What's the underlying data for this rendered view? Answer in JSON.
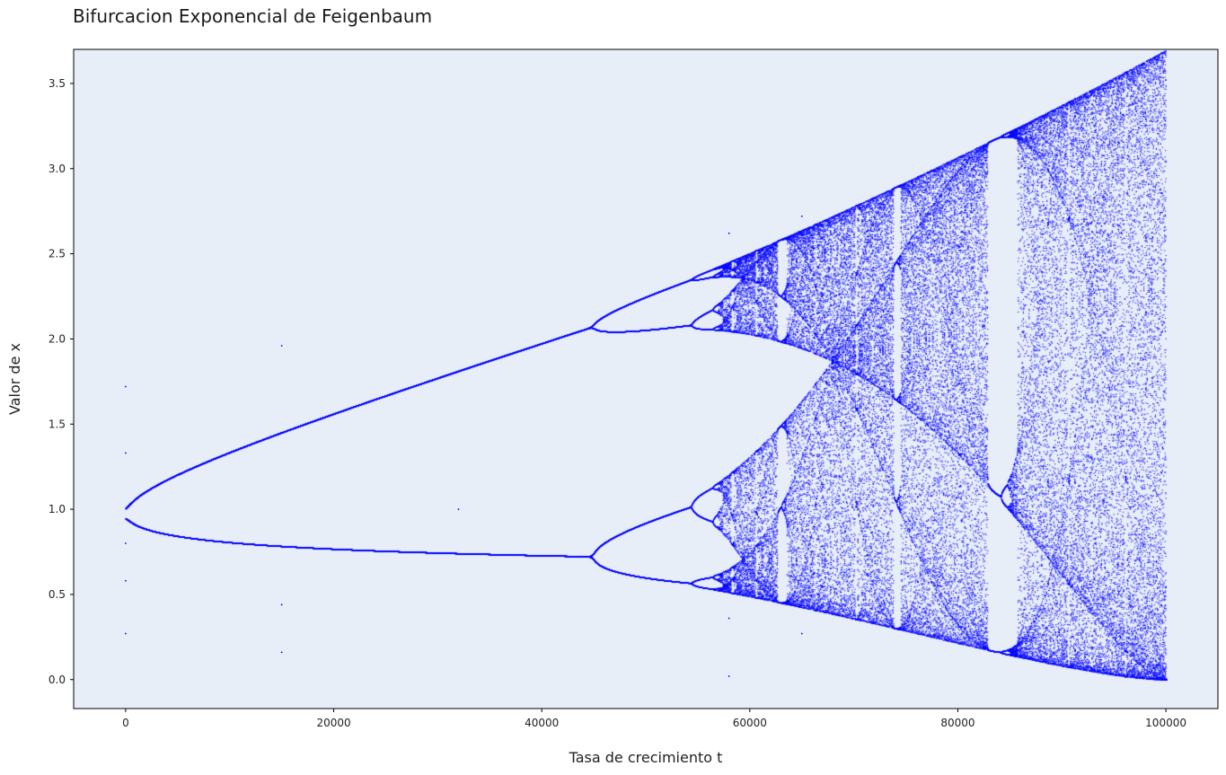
{
  "chart_data": {
    "type": "scatter",
    "title": "Bifurcacion Exponencial de Feigenbaum",
    "xlabel": "Tasa de crecimiento t",
    "ylabel": "Valor de x",
    "xlim": [
      -5000,
      105000
    ],
    "ylim": [
      -0.17,
      3.7
    ],
    "xticks": [
      0,
      20000,
      40000,
      60000,
      80000,
      100000
    ],
    "yticks": [
      0.0,
      0.5,
      1.0,
      1.5,
      2.0,
      2.5,
      3.0,
      3.5
    ],
    "xtick_labels": [
      "0",
      "20000",
      "40000",
      "60000",
      "80000",
      "100000"
    ],
    "ytick_labels": [
      "0.0",
      "0.5",
      "1.0",
      "1.5",
      "2.0",
      "2.5",
      "3.0",
      "3.5"
    ],
    "grid": false,
    "marker_color": "#0000ff",
    "background_color": "#e8eef8",
    "series": [
      {
        "x_range": [
          0,
          100000
        ],
        "description_of_values": "long-run iterates of the map for each growth rate t"
      }
    ],
    "sample_points": [
      {
        "x": 0,
        "y": 1.72
      },
      {
        "x": 0,
        "y": 0.27
      },
      {
        "x": 0,
        "y": 1.33
      },
      {
        "x": 0,
        "y": 0.8
      },
      {
        "x": 0,
        "y": 0.58
      },
      {
        "x": 15000,
        "y": 1.96
      },
      {
        "x": 15000,
        "y": 1.45
      },
      {
        "x": 15000,
        "y": 0.44
      },
      {
        "x": 15000,
        "y": 0.16
      },
      {
        "x": 32000,
        "y": 1.0
      },
      {
        "x": 58000,
        "y": 2.62
      },
      {
        "x": 58000,
        "y": 0.36
      },
      {
        "x": 58000,
        "y": 0.02
      },
      {
        "x": 65000,
        "y": 2.72
      },
      {
        "x": 65000,
        "y": 0.27
      },
      {
        "x": 100000,
        "y": 3.52
      },
      {
        "x": 100000,
        "y": 0.54
      },
      {
        "x": 100000,
        "y": 0.0
      }
    ]
  }
}
